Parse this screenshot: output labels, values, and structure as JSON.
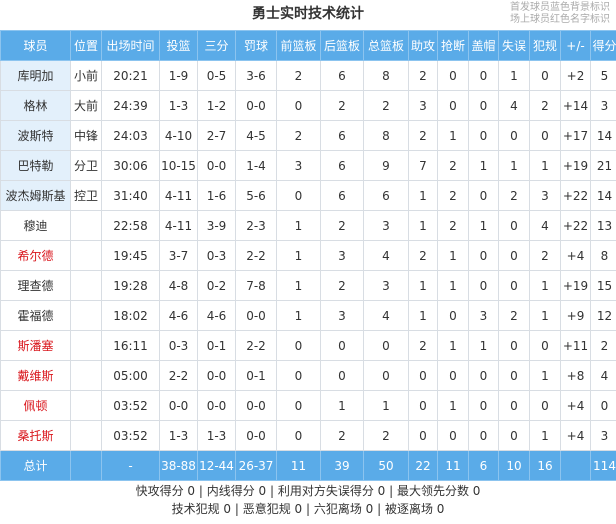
{
  "title": "勇士实时技术统计",
  "legend": [
    "首发球员蓝色背景标识",
    "场上球员红色名字标识"
  ],
  "headers": [
    "球员",
    "位置",
    "出场时间",
    "投篮",
    "三分",
    "罚球",
    "前篮板",
    "后篮板",
    "总篮板",
    "助攻",
    "抢断",
    "盖帽",
    "失误",
    "犯规",
    "+/-",
    "得分"
  ],
  "players": [
    {
      "name": "库明加",
      "starter": true,
      "on_court": false,
      "stats": [
        "小前",
        "20:21",
        "1-9",
        "0-5",
        "3-6",
        "2",
        "6",
        "8",
        "2",
        "0",
        "0",
        "1",
        "0",
        "+2",
        "5"
      ]
    },
    {
      "name": "格林",
      "starter": true,
      "on_court": false,
      "stats": [
        "大前",
        "24:39",
        "1-3",
        "1-2",
        "0-0",
        "0",
        "2",
        "2",
        "3",
        "0",
        "0",
        "4",
        "2",
        "+14",
        "3"
      ]
    },
    {
      "name": "波斯特",
      "starter": true,
      "on_court": false,
      "stats": [
        "中锋",
        "24:03",
        "4-10",
        "2-7",
        "4-5",
        "2",
        "6",
        "8",
        "2",
        "1",
        "0",
        "0",
        "0",
        "+17",
        "14"
      ]
    },
    {
      "name": "巴特勒",
      "starter": true,
      "on_court": false,
      "stats": [
        "分卫",
        "30:06",
        "10-15",
        "0-0",
        "1-4",
        "3",
        "6",
        "9",
        "7",
        "2",
        "1",
        "1",
        "1",
        "+19",
        "21"
      ]
    },
    {
      "name": "波杰姆斯基",
      "starter": true,
      "on_court": false,
      "stats": [
        "控卫",
        "31:40",
        "4-11",
        "1-6",
        "5-6",
        "0",
        "6",
        "6",
        "1",
        "2",
        "0",
        "2",
        "3",
        "+22",
        "14"
      ]
    },
    {
      "name": "穆迪",
      "starter": false,
      "on_court": false,
      "stats": [
        "",
        "22:58",
        "4-11",
        "3-9",
        "2-3",
        "1",
        "2",
        "3",
        "1",
        "2",
        "1",
        "0",
        "4",
        "+22",
        "13"
      ]
    },
    {
      "name": "希尔德",
      "starter": false,
      "on_court": true,
      "stats": [
        "",
        "19:45",
        "3-7",
        "0-3",
        "2-2",
        "1",
        "3",
        "4",
        "2",
        "1",
        "0",
        "0",
        "2",
        "+4",
        "8"
      ]
    },
    {
      "name": "理查德",
      "starter": false,
      "on_court": false,
      "stats": [
        "",
        "19:28",
        "4-8",
        "0-2",
        "7-8",
        "1",
        "2",
        "3",
        "1",
        "1",
        "0",
        "0",
        "1",
        "+19",
        "15"
      ]
    },
    {
      "name": "霍福德",
      "starter": false,
      "on_court": false,
      "stats": [
        "",
        "18:02",
        "4-6",
        "4-6",
        "0-0",
        "1",
        "3",
        "4",
        "1",
        "0",
        "3",
        "2",
        "1",
        "+9",
        "12"
      ]
    },
    {
      "name": "斯潘塞",
      "starter": false,
      "on_court": true,
      "stats": [
        "",
        "16:11",
        "0-3",
        "0-1",
        "2-2",
        "0",
        "0",
        "0",
        "2",
        "1",
        "1",
        "0",
        "0",
        "+11",
        "2"
      ]
    },
    {
      "name": "戴维斯",
      "starter": false,
      "on_court": true,
      "stats": [
        "",
        "05:00",
        "2-2",
        "0-0",
        "0-1",
        "0",
        "0",
        "0",
        "0",
        "0",
        "0",
        "0",
        "1",
        "+8",
        "4"
      ]
    },
    {
      "name": "佩顿",
      "starter": false,
      "on_court": true,
      "stats": [
        "",
        "03:52",
        "0-0",
        "0-0",
        "0-0",
        "0",
        "1",
        "1",
        "0",
        "1",
        "0",
        "0",
        "0",
        "+4",
        "0"
      ]
    },
    {
      "name": "桑托斯",
      "starter": false,
      "on_court": true,
      "stats": [
        "",
        "03:52",
        "1-3",
        "1-3",
        "0-0",
        "0",
        "2",
        "2",
        "0",
        "0",
        "0",
        "0",
        "1",
        "+4",
        "3"
      ]
    }
  ],
  "total": {
    "label": "总计",
    "stats": [
      "",
      "-",
      "38-88",
      "12-44",
      "26-37",
      "11",
      "39",
      "50",
      "22",
      "11",
      "6",
      "10",
      "16",
      "",
      "114"
    ]
  },
  "footer": [
    "快攻得分 0 | 内线得分 0 | 利用对方失误得分 0 | 最大领先分数 0",
    "技术犯规 0 | 恶意犯规 0 | 六犯离场 0 | 被逐离场 0"
  ],
  "colors": {
    "header": "#5aabe8",
    "starter_bg": "#e3f0fb",
    "on_court_name": "#d9161c"
  }
}
